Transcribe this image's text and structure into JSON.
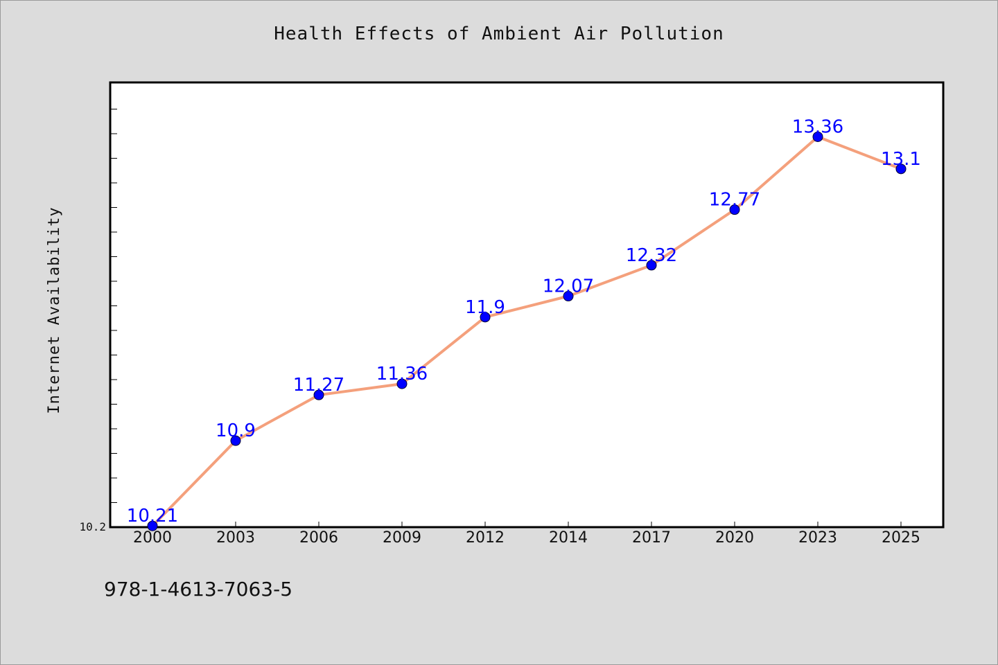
{
  "footer_note": "978-1-4613-7063-5",
  "chart_data": {
    "type": "line",
    "title": "Health Effects of Ambient Air Pollution",
    "xlabel": "",
    "ylabel": "Internet Availability",
    "categories": [
      "2000",
      "2003",
      "2006",
      "2009",
      "2012",
      "2014",
      "2017",
      "2020",
      "2023",
      "2025"
    ],
    "series": [
      {
        "values": [
          10.21,
          10.9,
          11.27,
          11.36,
          11.9,
          12.07,
          12.32,
          12.77,
          13.36,
          13.1
        ],
        "line_color": "#f4a07c",
        "marker_color": "#0000ff"
      }
    ],
    "data_labels": [
      "10.21",
      "10.9",
      "11.27",
      "11.36",
      "11.9",
      "12.07",
      "12.32",
      "12.77",
      "13.36",
      "13.1"
    ],
    "data_label_color": "#0000ff",
    "ytick_labels": [
      "10.2"
    ],
    "ylim": [
      10.2,
      13.8
    ],
    "grid": false,
    "legend": "none"
  }
}
